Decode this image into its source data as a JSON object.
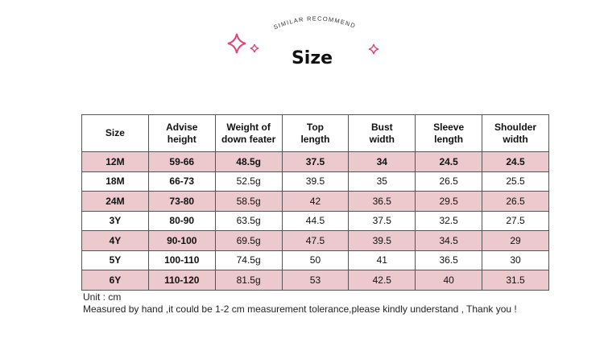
{
  "header": {
    "subtitle": "SIMILAR RECOMMEND",
    "title": "Size"
  },
  "table": {
    "columns": [
      "Size",
      "Advise\nheight",
      "Weight of\ndown feater",
      "Top\nlength",
      "Bust\nwidth",
      "Sleeve\nlength",
      "Shoulder\nwidth"
    ],
    "rows": [
      [
        "12M",
        "59-66",
        "48.5g",
        "37.5",
        "34",
        "24.5",
        "24.5"
      ],
      [
        "18M",
        "66-73",
        "52.5g",
        "39.5",
        "35",
        "26.5",
        "25.5"
      ],
      [
        "24M",
        "73-80",
        "58.5g",
        "42",
        "36.5",
        "29.5",
        "26.5"
      ],
      [
        "3Y",
        "80-90",
        "63.5g",
        "44.5",
        "37.5",
        "32.5",
        "27.5"
      ],
      [
        "4Y",
        "90-100",
        "69.5g",
        "47.5",
        "39.5",
        "34.5",
        "29"
      ],
      [
        "5Y",
        "100-110",
        "74.5g",
        "50",
        "41",
        "36.5",
        "30"
      ],
      [
        "6Y",
        "110-120",
        "81.5g",
        "53",
        "42.5",
        "40",
        "31.5"
      ]
    ]
  },
  "notes": [
    "Unit : cm",
    "Measured by hand ,it could be 1-2 cm measurement tolerance,please kindly understand , Thank you !"
  ]
}
